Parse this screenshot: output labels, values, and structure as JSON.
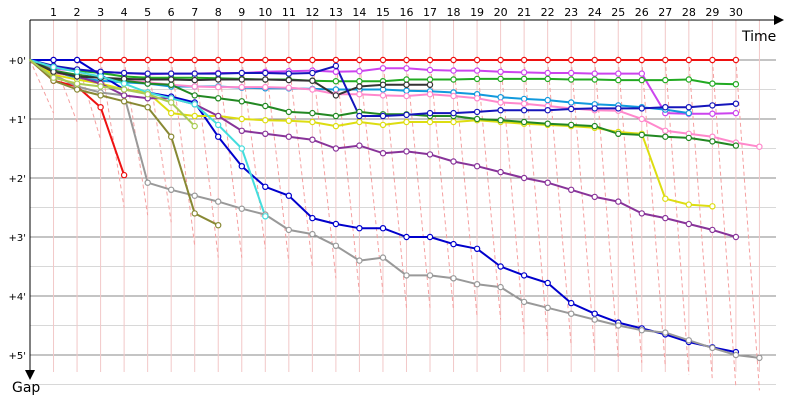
{
  "chart_data": {
    "type": "line",
    "xlabel": "Time",
    "ylabel": "Gap",
    "x_ticks": [
      "1",
      "2",
      "3",
      "4",
      "5",
      "6",
      "7",
      "8",
      "9",
      "10",
      "11",
      "12",
      "13",
      "14",
      "15",
      "16",
      "17",
      "18",
      "19",
      "20",
      "21",
      "22",
      "23",
      "24",
      "25",
      "26",
      "27",
      "28",
      "29",
      "30"
    ],
    "y_ticks": [
      "+0'",
      "+1'",
      "+2'",
      "+3'",
      "+4'",
      "+5'"
    ],
    "xlim": [
      0,
      31
    ],
    "ylim": [
      0,
      5.5
    ],
    "grid": true,
    "series": [
      {
        "color": "#ee1111",
        "values": [
          0.0,
          0.0,
          0.0,
          0.0,
          0.0,
          0.0,
          0.0,
          0.0,
          0.0,
          0.0,
          0.0,
          0.0,
          0.0,
          0.0,
          0.0,
          0.0,
          0.0,
          0.0,
          0.0,
          0.0,
          0.0,
          0.0,
          0.0,
          0.0,
          0.0,
          0.0,
          0.0,
          0.0,
          0.0,
          0.0,
          0.0
        ]
      },
      {
        "color": "#ee1111",
        "values": [
          0.0,
          0.35,
          0.45,
          0.8,
          1.95
        ]
      },
      {
        "color": "#cc44ee",
        "values": [
          0.0,
          0.15,
          0.18,
          0.2,
          0.22,
          0.24,
          0.23,
          0.23,
          0.22,
          0.22,
          0.2,
          0.19,
          0.18,
          0.2,
          0.19,
          0.14,
          0.14,
          0.17,
          0.18,
          0.18,
          0.2,
          0.21,
          0.22,
          0.22,
          0.23,
          0.23,
          0.23,
          0.9,
          0.91,
          0.91,
          0.9
        ]
      },
      {
        "color": "#22aa22",
        "values": [
          0.0,
          0.12,
          0.18,
          0.22,
          0.28,
          0.3,
          0.3,
          0.3,
          0.31,
          0.32,
          0.33,
          0.33,
          0.35,
          0.36,
          0.36,
          0.36,
          0.33,
          0.33,
          0.33,
          0.32,
          0.32,
          0.32,
          0.32,
          0.33,
          0.33,
          0.34,
          0.34,
          0.34,
          0.33,
          0.4,
          0.41
        ]
      },
      {
        "color": "#1199dd",
        "values": [
          0.0,
          0.2,
          0.3,
          0.35,
          0.38,
          0.4,
          0.45,
          0.45,
          0.45,
          0.47,
          0.48,
          0.48,
          0.49,
          0.5,
          0.5,
          0.5,
          0.52,
          0.53,
          0.55,
          0.58,
          0.63,
          0.66,
          0.68,
          0.72,
          0.75,
          0.77,
          0.8,
          0.84,
          0.9
        ]
      },
      {
        "color": "#ff88cc",
        "values": [
          0.0,
          0.22,
          0.27,
          0.3,
          0.34,
          0.38,
          0.42,
          0.45,
          0.46,
          0.46,
          0.46,
          0.47,
          0.5,
          0.58,
          0.58,
          0.6,
          0.61,
          0.58,
          0.61,
          0.65,
          0.72,
          0.74,
          0.78,
          0.82,
          0.85,
          0.86,
          1.0,
          1.2,
          1.25,
          1.3,
          1.4,
          1.47
        ]
      },
      {
        "color": "#0000cc",
        "values": [
          0.0,
          0.0,
          0.0,
          0.25,
          0.5,
          0.55,
          0.62,
          0.72,
          1.3,
          1.8,
          2.15,
          2.3,
          2.68,
          2.78,
          2.85,
          2.85,
          3.0,
          3.0,
          3.12,
          3.2,
          3.5,
          3.65,
          3.78,
          4.12,
          4.3,
          4.45,
          4.55,
          4.65,
          4.78,
          4.87,
          4.95
        ]
      },
      {
        "color": "#999999",
        "values": [
          0.0,
          0.25,
          0.45,
          0.55,
          0.6,
          2.08,
          2.2,
          2.3,
          2.4,
          2.52,
          2.62,
          2.88,
          2.95,
          3.15,
          3.4,
          3.35,
          3.65,
          3.65,
          3.7,
          3.8,
          3.85,
          4.1,
          4.2,
          4.3,
          4.4,
          4.5,
          4.58,
          4.62,
          4.75,
          4.88,
          5.0,
          5.05
        ]
      },
      {
        "color": "#dddd11",
        "values": [
          0.0,
          0.25,
          0.33,
          0.4,
          0.5,
          0.55,
          0.9,
          0.95,
          0.95,
          1.0,
          1.02,
          1.03,
          1.05,
          1.12,
          1.05,
          1.1,
          1.05,
          1.05,
          1.05,
          1.02,
          1.05,
          1.08,
          1.1,
          1.12,
          1.15,
          1.22,
          1.25,
          2.35,
          2.45,
          2.48
        ]
      },
      {
        "color": "#883399",
        "values": [
          0.0,
          0.2,
          0.28,
          0.4,
          0.6,
          0.65,
          0.65,
          0.75,
          0.95,
          1.2,
          1.25,
          1.3,
          1.35,
          1.5,
          1.45,
          1.58,
          1.55,
          1.6,
          1.72,
          1.8,
          1.9,
          2.0,
          2.08,
          2.2,
          2.32,
          2.4,
          2.6,
          2.68,
          2.78,
          2.88,
          3.0
        ]
      },
      {
        "color": "#228822",
        "values": [
          0.0,
          0.18,
          0.25,
          0.3,
          0.35,
          0.4,
          0.42,
          0.6,
          0.65,
          0.7,
          0.78,
          0.88,
          0.9,
          0.95,
          0.88,
          0.92,
          0.92,
          0.95,
          0.95,
          1.0,
          1.02,
          1.05,
          1.08,
          1.1,
          1.12,
          1.25,
          1.27,
          1.3,
          1.32,
          1.38,
          1.45
        ]
      },
      {
        "color": "#333333",
        "values": [
          0.0,
          0.2,
          0.28,
          0.3,
          0.32,
          0.33,
          0.33,
          0.34,
          0.33,
          0.33,
          0.33,
          0.34,
          0.35,
          0.6,
          0.45,
          0.42,
          0.42,
          0.42
        ]
      },
      {
        "color": "#1515bb",
        "values": [
          0.0,
          0.1,
          0.16,
          0.2,
          0.22,
          0.23,
          0.23,
          0.23,
          0.23,
          0.22,
          0.22,
          0.23,
          0.22,
          0.1,
          0.95,
          0.95,
          0.93,
          0.9,
          0.9,
          0.88,
          0.85,
          0.85,
          0.85,
          0.83,
          0.82,
          0.82,
          0.82,
          0.8,
          0.8,
          0.77,
          0.74
        ]
      },
      {
        "color": "#44dddd",
        "values": [
          0.0,
          0.12,
          0.2,
          0.28,
          0.4,
          0.55,
          0.65,
          0.75,
          1.1,
          1.5,
          2.65
        ]
      },
      {
        "color": "#888833",
        "values": [
          0.0,
          0.35,
          0.5,
          0.6,
          0.7,
          0.8,
          1.3,
          2.6,
          2.8
        ]
      },
      {
        "color": "#aacc55",
        "values": [
          0.0,
          0.3,
          0.4,
          0.45,
          0.5,
          0.58,
          0.72,
          1.12
        ]
      }
    ]
  }
}
